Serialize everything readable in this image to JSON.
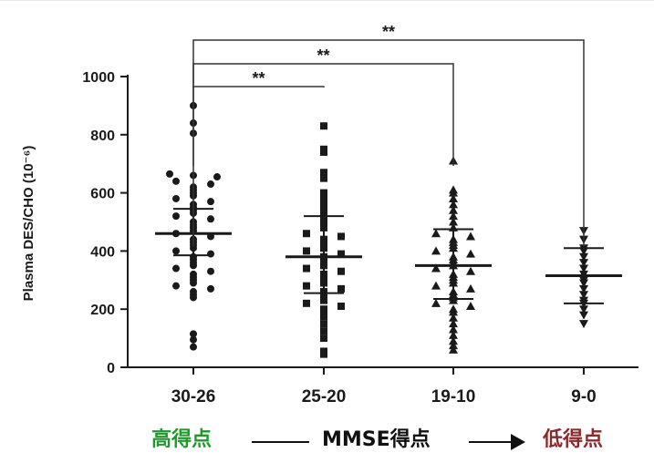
{
  "chart_data": {
    "type": "scatter",
    "ylabel": "Plasma DES/CHO  (10⁻⁶)",
    "xlabel": "",
    "ylim": [
      0,
      1000
    ],
    "yticks": [
      0,
      200,
      400,
      600,
      800,
      1000
    ],
    "categories": [
      "30-26",
      "25-20",
      "19-10",
      "9-0"
    ],
    "markers": [
      "circle",
      "square",
      "triangle-up",
      "triangle-down"
    ],
    "summary": [
      {
        "mean": 460,
        "sd_low": 385,
        "sd_high": 545
      },
      {
        "mean": 380,
        "sd_low": 255,
        "sd_high": 520
      },
      {
        "mean": 350,
        "sd_low": 235,
        "sd_high": 475
      },
      {
        "mean": 315,
        "sd_low": 220,
        "sd_high": 410
      }
    ],
    "series": [
      {
        "values": [
          900,
          840,
          805,
          665,
          660,
          655,
          640,
          630,
          620,
          610,
          600,
          590,
          580,
          570,
          560,
          550,
          540,
          530,
          520,
          510,
          500,
          490,
          480,
          470,
          460,
          450,
          440,
          430,
          420,
          410,
          400,
          390,
          380,
          370,
          360,
          350,
          340,
          330,
          320,
          310,
          300,
          290,
          280,
          270,
          260,
          250,
          240,
          115,
          95,
          70
        ]
      },
      {
        "values": [
          830,
          750,
          740,
          670,
          650,
          600,
          580,
          560,
          540,
          520,
          500,
          480,
          460,
          450,
          440,
          430,
          420,
          410,
          400,
          390,
          380,
          370,
          360,
          350,
          340,
          330,
          320,
          310,
          300,
          290,
          280,
          270,
          260,
          250,
          240,
          230,
          220,
          210,
          200,
          190,
          175,
          150,
          125,
          100,
          55,
          45
        ]
      },
      {
        "values": [
          710,
          610,
          600,
          580,
          560,
          540,
          520,
          500,
          480,
          460,
          450,
          440,
          430,
          420,
          410,
          400,
          390,
          380,
          370,
          360,
          350,
          340,
          330,
          320,
          310,
          300,
          290,
          280,
          270,
          260,
          250,
          240,
          230,
          220,
          210,
          200,
          190,
          170,
          150,
          130,
          110,
          90,
          75,
          60
        ]
      },
      {
        "values": [
          470,
          440,
          410,
          400,
          380,
          360,
          340,
          320,
          300,
          290,
          270,
          250,
          230,
          220,
          200,
          180,
          150
        ]
      }
    ],
    "annotations": [
      {
        "from": "30-26",
        "to": "25-20",
        "text": "**"
      },
      {
        "from": "30-26",
        "to": "19-10",
        "text": "**"
      },
      {
        "from": "30-26",
        "to": "9-0",
        "text": "**"
      }
    ]
  },
  "caption": {
    "left": "高得点",
    "middle": "MMSE得点",
    "right": "低得点"
  },
  "colors": {
    "left": "#1f9a2a",
    "right": "#8a2a2a",
    "ink": "#1a1a1a"
  }
}
